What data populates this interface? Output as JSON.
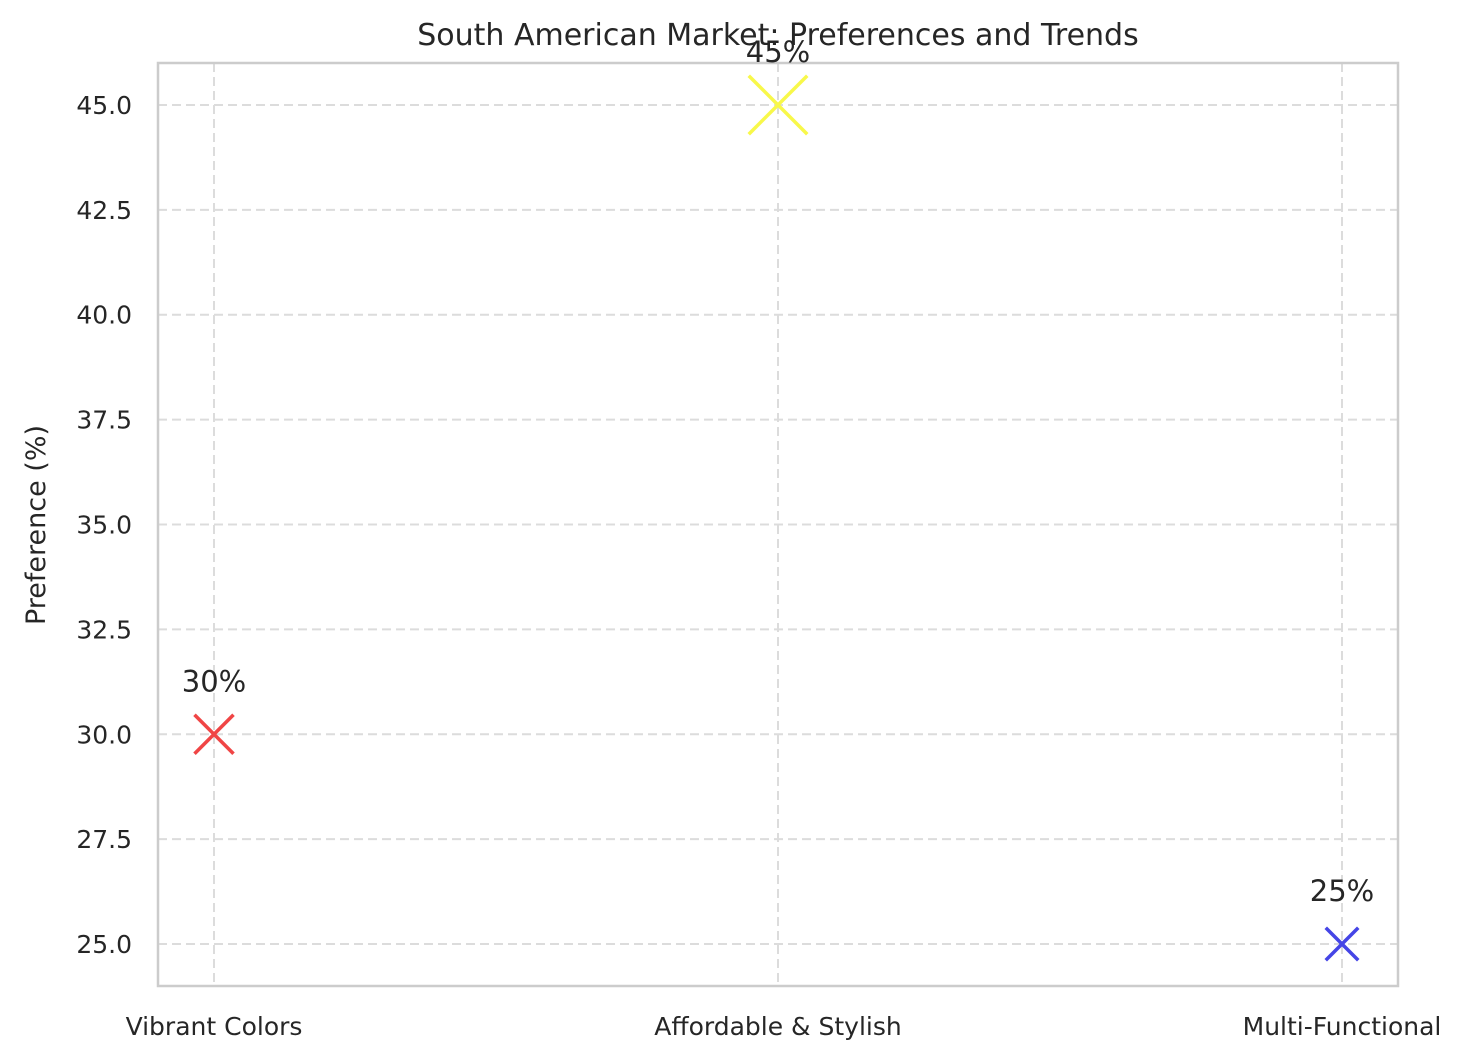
{
  "chart_data": {
    "type": "scatter",
    "title": "South American Market: Preferences and Trends",
    "xlabel": "",
    "ylabel": "Preference (%)",
    "categories": [
      "Vibrant Colors",
      "Affordable & Stylish",
      "Multi-Functional"
    ],
    "values": [
      30,
      45,
      25
    ],
    "point_labels": [
      "30%",
      "45%",
      "25%"
    ],
    "colors": [
      "#f04545",
      "#f8f84a",
      "#4545e6"
    ],
    "marker": "x",
    "marker_sizes": [
      30,
      45,
      25
    ],
    "ylim": [
      24,
      46
    ],
    "yticks": [
      25.0,
      27.5,
      30.0,
      32.5,
      35.0,
      37.5,
      40.0,
      42.5,
      45.0
    ],
    "ytick_labels": [
      "25.0",
      "27.5",
      "30.0",
      "32.5",
      "35.0",
      "37.5",
      "40.0",
      "42.5",
      "45.0"
    ],
    "grid": true,
    "legend": "none"
  }
}
